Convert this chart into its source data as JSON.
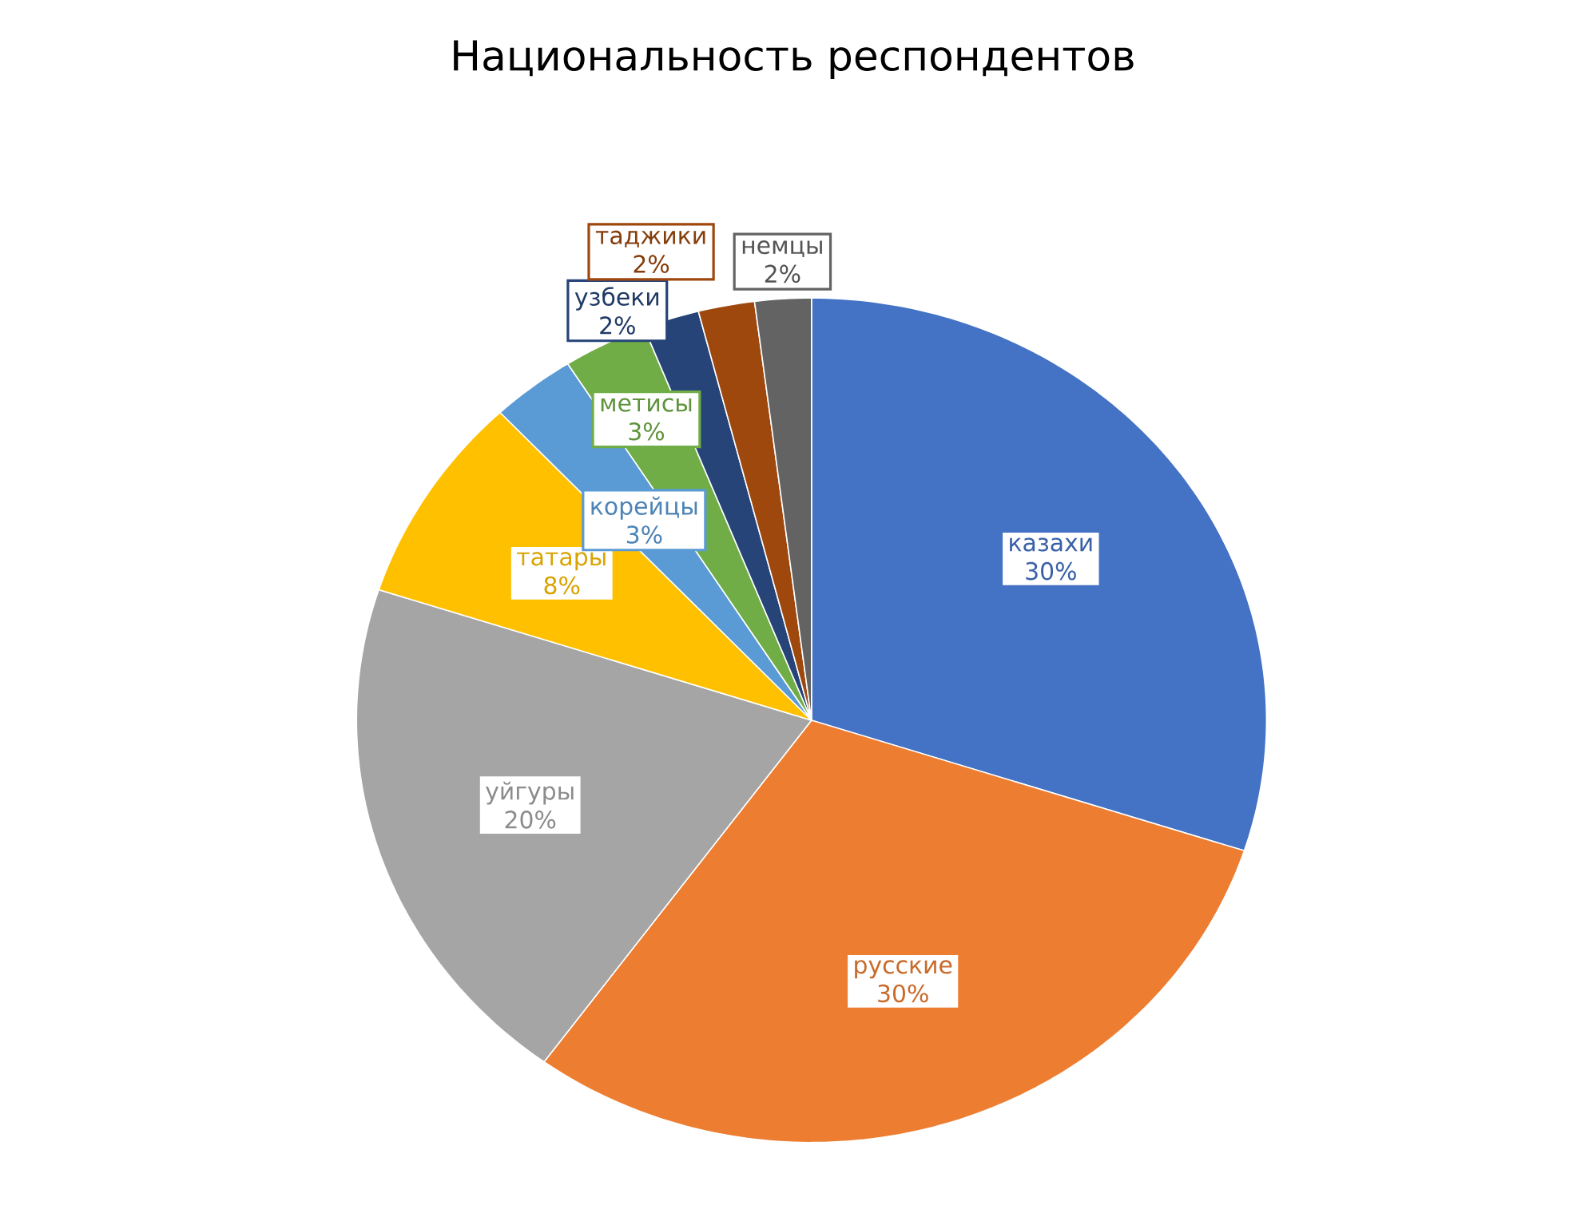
{
  "chart_data": {
    "type": "pie",
    "title": "Национальность респондентов",
    "categories": [
      "казахи",
      "русские",
      "уйгуры",
      "татары",
      "корейцы",
      "метисы",
      "узбеки",
      "таджики",
      "немцы"
    ],
    "values": [
      30,
      30,
      20,
      8,
      3,
      3,
      2,
      2,
      2
    ],
    "colors": [
      "#4472c4",
      "#ed7d31",
      "#a5a5a5",
      "#ffc000",
      "#5b9bd5",
      "#70ad47",
      "#264478",
      "#9e480e",
      "#636363"
    ],
    "value_labels": [
      "30%",
      "30%",
      "20%",
      "8%",
      "3%",
      "3%",
      "2%",
      "2%",
      "2%"
    ]
  }
}
